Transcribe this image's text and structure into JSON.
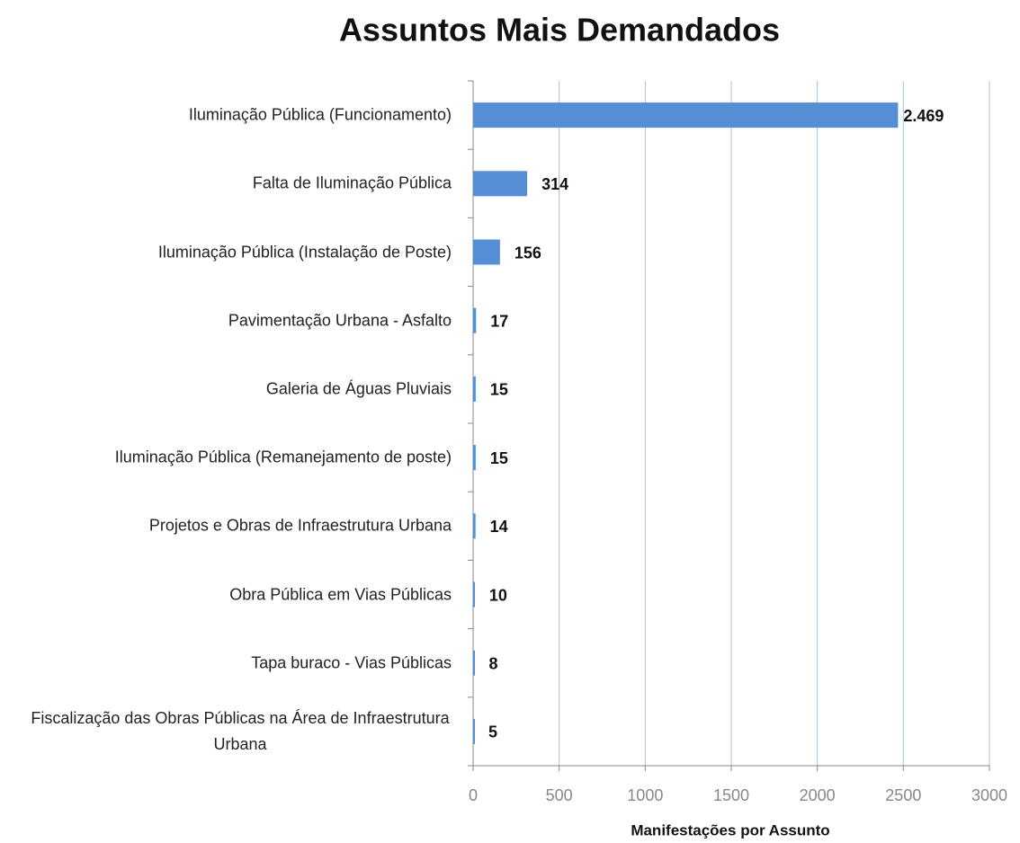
{
  "chart_data": {
    "type": "bar",
    "orientation": "horizontal",
    "title": "Assuntos Mais Demandados",
    "x_label": "Manifestações por Assunto",
    "categories": [
      "Iluminação Pública (Funcionamento)",
      "Falta de Iluminação Pública",
      "Iluminação Pública (Instalação de Poste)",
      "Pavimentação Urbana - Asfalto",
      "Galeria de Águas Pluviais",
      "Iluminação Pública (Remanejamento de poste)",
      "Projetos e Obras de Infraestrutura Urbana",
      "Obra Pública em Vias Públicas",
      "Tapa buraco - Vias Públicas",
      "Fiscalização das Obras Públicas na Área de Infraestrutura Urbana"
    ],
    "values": [
      2469,
      314,
      156,
      17,
      15,
      15,
      14,
      10,
      8,
      5
    ],
    "value_labels": [
      "2.469",
      "314",
      "156",
      "17",
      "15",
      "15",
      "14",
      "10",
      "8",
      "5"
    ],
    "color": "#558ed5",
    "xlim": [
      0,
      3000
    ],
    "xticks": [
      0,
      500,
      1000,
      1500,
      2000,
      2500,
      3000
    ],
    "grid": true
  }
}
